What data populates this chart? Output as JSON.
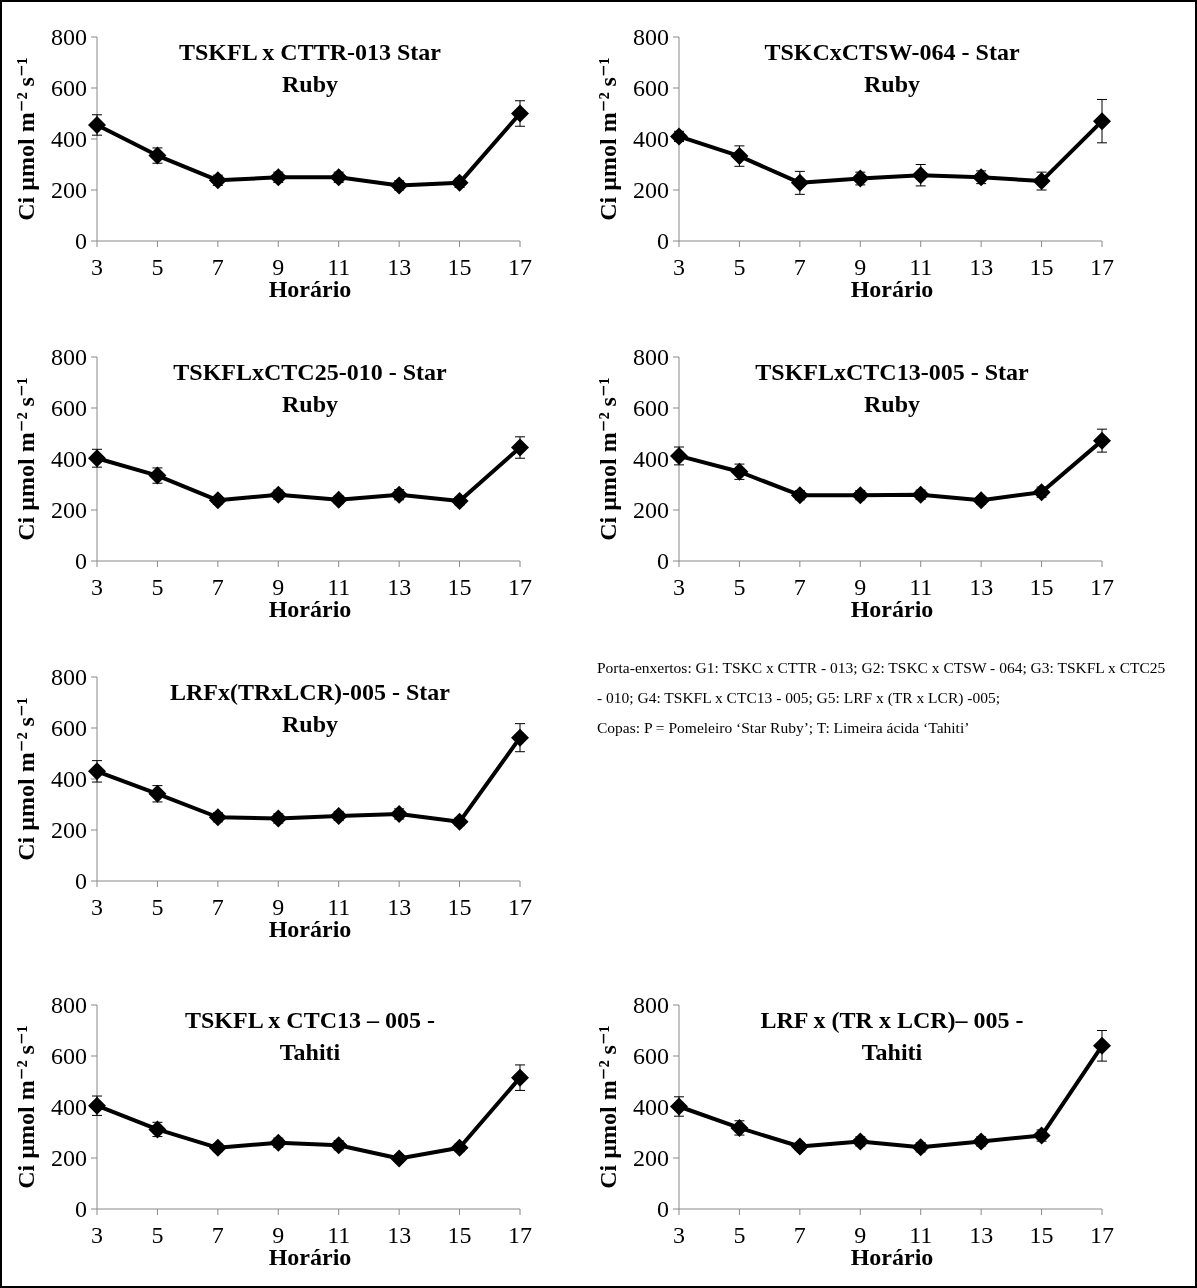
{
  "chart_data": [
    {
      "type": "line",
      "title": "TSKFL x CTTR-013 Star Ruby",
      "xlabel": "Horário",
      "ylabel": "Ci µmol m⁻² s⁻¹",
      "categories": [
        "3",
        "5",
        "7",
        "9",
        "11",
        "13",
        "15",
        "17"
      ],
      "ylim": [
        0,
        800
      ],
      "yticks": [
        0,
        200,
        400,
        600,
        800
      ],
      "marker": "diamond",
      "series": [
        {
          "color": "#000000",
          "values": [
            455,
            335,
            238,
            250,
            250,
            218,
            228,
            500
          ],
          "errors": [
            40,
            30,
            20,
            20,
            20,
            18,
            18,
            50
          ]
        }
      ]
    },
    {
      "type": "line",
      "title": "TSKCxCTSW-064 - Star Ruby",
      "xlabel": "Horário",
      "ylabel": "Ci µmol m⁻² s⁻¹",
      "categories": [
        "3",
        "5",
        "7",
        "9",
        "11",
        "13",
        "15",
        "17"
      ],
      "ylim": [
        0,
        800
      ],
      "yticks": [
        0,
        200,
        400,
        600,
        800
      ],
      "marker": "diamond",
      "series": [
        {
          "color": "#000000",
          "values": [
            410,
            333,
            228,
            245,
            258,
            250,
            235,
            470
          ],
          "errors": [
            20,
            40,
            45,
            25,
            42,
            25,
            35,
            85
          ]
        }
      ]
    },
    {
      "type": "line",
      "title": "TSKFLxCTC25-010 - Star Ruby",
      "xlabel": "Horário",
      "ylabel": "Ci µmol m⁻² s⁻¹",
      "categories": [
        "3",
        "5",
        "7",
        "9",
        "11",
        "13",
        "15",
        "17"
      ],
      "ylim": [
        0,
        800
      ],
      "yticks": [
        0,
        200,
        400,
        600,
        800
      ],
      "marker": "diamond",
      "series": [
        {
          "color": "#000000",
          "values": [
            403,
            335,
            238,
            260,
            240,
            260,
            235,
            445
          ],
          "errors": [
            35,
            30,
            15,
            18,
            15,
            20,
            15,
            42
          ]
        }
      ]
    },
    {
      "type": "line",
      "title": "TSKFLxCTC13-005 - Star Ruby",
      "xlabel": "Horário",
      "ylabel": "Ci µmol m⁻² s⁻¹",
      "categories": [
        "3",
        "5",
        "7",
        "9",
        "11",
        "13",
        "15",
        "17"
      ],
      "ylim": [
        0,
        800
      ],
      "yticks": [
        0,
        200,
        400,
        600,
        800
      ],
      "marker": "diamond",
      "series": [
        {
          "color": "#000000",
          "values": [
            412,
            350,
            258,
            258,
            260,
            238,
            270,
            472
          ],
          "errors": [
            35,
            30,
            18,
            18,
            18,
            15,
            20,
            45
          ]
        }
      ]
    },
    {
      "type": "line",
      "title": "LRFx(TRxLCR)-005 - Star Ruby",
      "xlabel": "Horário",
      "ylabel": "Ci µmol m⁻² s⁻¹",
      "categories": [
        "3",
        "5",
        "7",
        "9",
        "11",
        "13",
        "15",
        "17"
      ],
      "ylim": [
        0,
        800
      ],
      "yticks": [
        0,
        200,
        400,
        600,
        800
      ],
      "marker": "diamond",
      "series": [
        {
          "color": "#000000",
          "values": [
            430,
            342,
            250,
            245,
            255,
            263,
            232,
            562
          ],
          "errors": [
            42,
            32,
            18,
            18,
            18,
            20,
            15,
            55
          ]
        }
      ]
    },
    {
      "type": "other",
      "annotations": [
        "Porta-enxertos: G1: TSKC x CTTR - 013; G2: TSKC x CTSW - 064; G3: TSKFL x CTC25 - 010; G4: TSKFL x CTC13 - 005; G5: LRF x (TR x LCR) -005;",
        "Copas: P = Pomeleiro ‘Star Ruby’; T: Limeira ácida ‘Tahiti’"
      ]
    },
    {
      "type": "line",
      "title": "TSKFL x CTC13 – 005 - Tahiti",
      "xlabel": "Horário",
      "ylabel": "Ci µmol m⁻² s⁻¹",
      "categories": [
        "3",
        "5",
        "7",
        "9",
        "11",
        "13",
        "15",
        "17"
      ],
      "ylim": [
        0,
        800
      ],
      "yticks": [
        0,
        200,
        400,
        600,
        800
      ],
      "marker": "diamond",
      "series": [
        {
          "color": "#000000",
          "values": [
            405,
            312,
            240,
            260,
            250,
            198,
            240,
            515
          ],
          "errors": [
            38,
            28,
            15,
            18,
            18,
            12,
            15,
            50
          ]
        }
      ]
    },
    {
      "type": "line",
      "title": "LRF x (TR x LCR)– 005 - Tahiti",
      "xlabel": "Horário",
      "ylabel": "Ci µmol m⁻² s⁻¹",
      "categories": [
        "3",
        "5",
        "7",
        "9",
        "11",
        "13",
        "15",
        "17"
      ],
      "ylim": [
        0,
        800
      ],
      "yticks": [
        0,
        200,
        400,
        600,
        800
      ],
      "marker": "diamond",
      "series": [
        {
          "color": "#000000",
          "values": [
            402,
            318,
            245,
            265,
            242,
            265,
            288,
            640
          ],
          "errors": [
            38,
            28,
            15,
            18,
            18,
            18,
            22,
            60
          ]
        }
      ]
    }
  ]
}
